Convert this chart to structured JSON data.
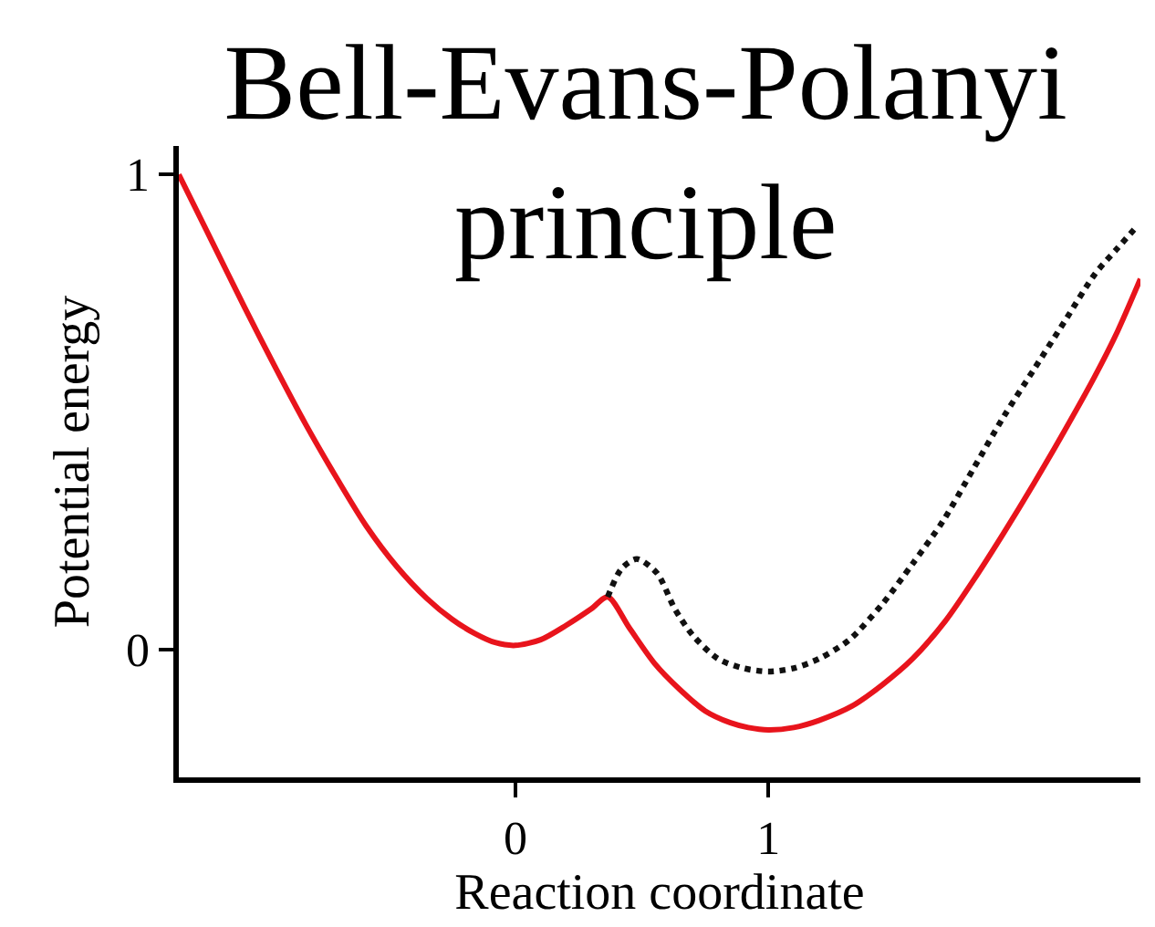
{
  "chart_data": {
    "type": "line",
    "title": "Bell-Evans-Polanyi\nprinciple",
    "xlabel": "Reaction coordinate",
    "ylabel": "Potential energy",
    "xlim": [
      -1.33,
      2.47
    ],
    "ylim": [
      -0.27,
      1.06
    ],
    "xticks": [
      0,
      1
    ],
    "yticks": [
      0,
      1
    ],
    "series": [
      {
        "color": "#e8141c",
        "line_style": "solid",
        "x": [
          -1.33,
          -1.2,
          -1.07,
          -0.95,
          -0.83,
          -0.7,
          -0.59,
          -0.47,
          -0.35,
          -0.25,
          -0.16,
          -0.08,
          0,
          0.1,
          0.2,
          0.3,
          0.365,
          0.45,
          0.55,
          0.65,
          0.75,
          0.85,
          0.92,
          1.0,
          1.1,
          1.2,
          1.33,
          1.45,
          1.57,
          1.7,
          1.81,
          1.93,
          2.05,
          2.17,
          2.29,
          2.38,
          2.47
        ],
        "values": [
          1.0,
          0.86,
          0.72,
          0.595,
          0.475,
          0.355,
          0.26,
          0.175,
          0.107,
          0.063,
          0.033,
          0.014,
          0.008,
          0.02,
          0.05,
          0.085,
          0.11,
          0.045,
          -0.03,
          -0.085,
          -0.13,
          -0.155,
          -0.165,
          -0.17,
          -0.165,
          -0.15,
          -0.12,
          -0.075,
          -0.02,
          0.06,
          0.145,
          0.245,
          0.35,
          0.46,
          0.575,
          0.67,
          0.78
        ]
      },
      {
        "color": "#111111",
        "line_style": "dotted",
        "x": [
          0.365,
          0.42,
          0.48,
          0.56,
          0.63,
          0.7,
          0.8,
          0.9,
          1.0,
          1.1,
          1.2,
          1.32,
          1.45,
          1.57,
          1.69,
          1.81,
          1.93,
          2.05,
          2.17,
          2.29,
          2.38,
          2.455
        ],
        "values": [
          0.11,
          0.17,
          0.19,
          0.16,
          0.085,
          0.03,
          -0.02,
          -0.04,
          -0.047,
          -0.04,
          -0.02,
          0.02,
          0.095,
          0.18,
          0.27,
          0.38,
          0.49,
          0.59,
          0.69,
          0.79,
          0.845,
          0.89
        ]
      }
    ]
  }
}
